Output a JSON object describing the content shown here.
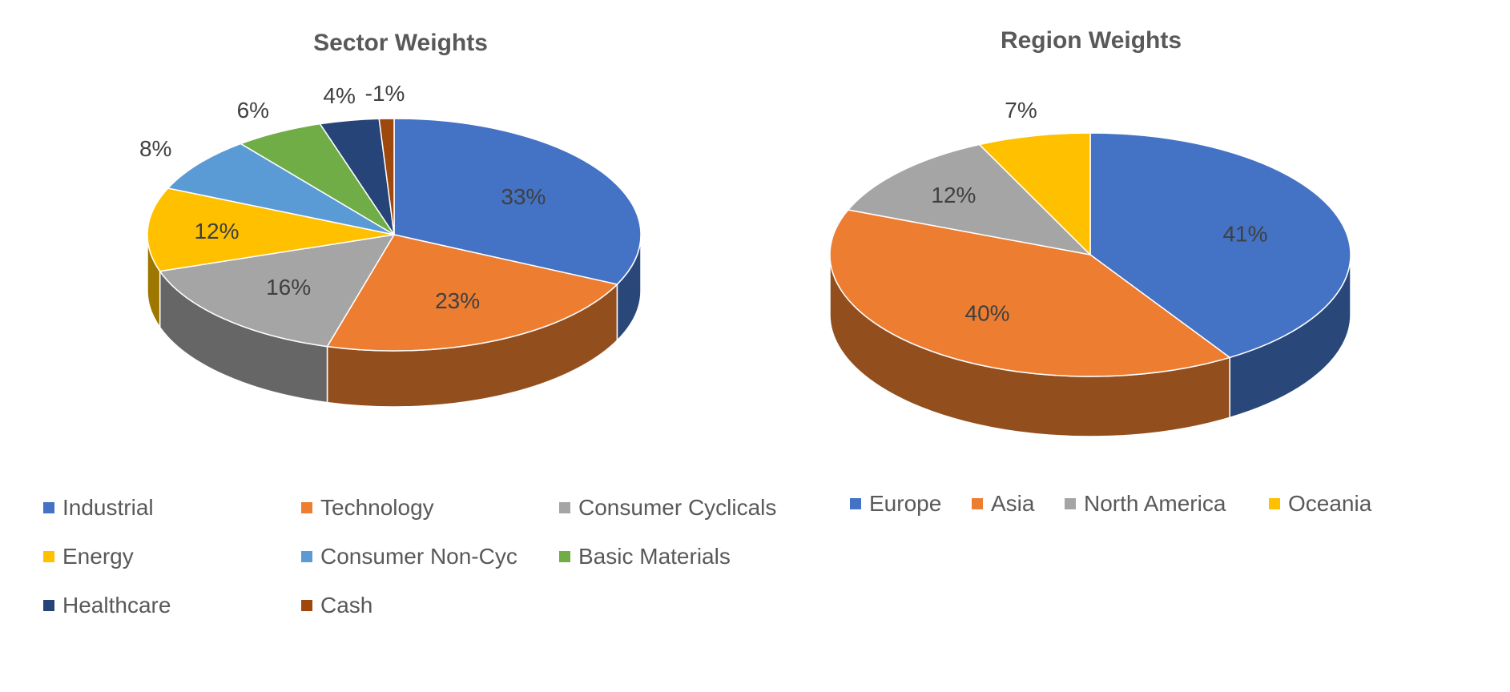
{
  "chart_data": [
    {
      "type": "pie",
      "title": "Sector Weights",
      "categories": [
        "Industrial",
        "Technology",
        "Consumer Cyclicals",
        "Energy",
        "Consumer Non-Cyc",
        "Basic Materials",
        "Healthcare",
        "Cash"
      ],
      "values": [
        33,
        23,
        16,
        12,
        8,
        6,
        4,
        -1
      ],
      "data_labels": [
        "33%",
        "23%",
        "16%",
        "12%",
        "8%",
        "6%",
        "4%",
        "-1%"
      ],
      "colors": [
        "#4472C4",
        "#ED7D31",
        "#A5A5A5",
        "#FFC000",
        "#5B9BD5",
        "#70AD47",
        "#264478",
        "#9E480E"
      ],
      "legend": "bottom",
      "style": "3d"
    },
    {
      "type": "pie",
      "title": "Region Weights",
      "categories": [
        "Europe",
        "Asia",
        "North America",
        "Oceania"
      ],
      "values": [
        41,
        40,
        12,
        7
      ],
      "data_labels": [
        "41%",
        "40%",
        "12%",
        "7%"
      ],
      "colors": [
        "#4472C4",
        "#ED7D31",
        "#A5A5A5",
        "#FFC000"
      ],
      "legend": "bottom",
      "style": "3d"
    }
  ]
}
